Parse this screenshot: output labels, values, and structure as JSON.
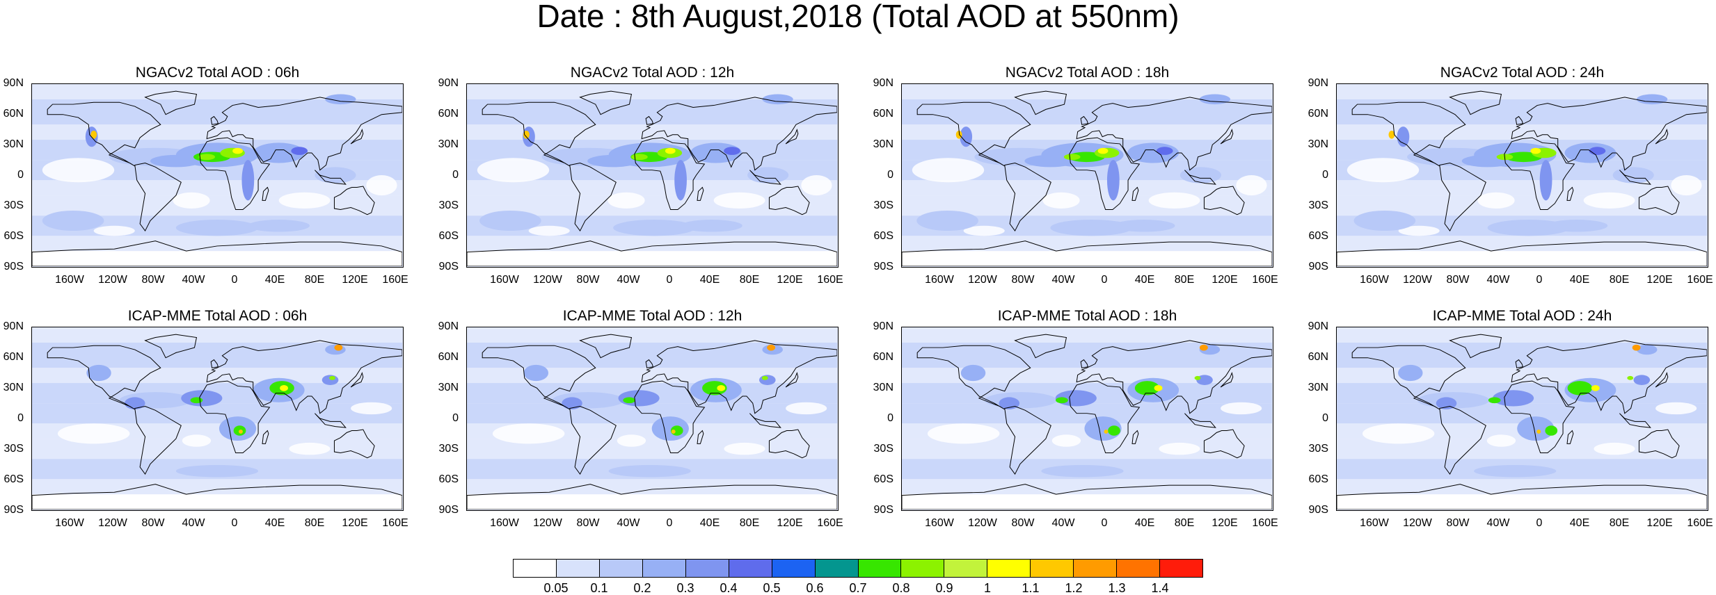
{
  "title": "Date : 8th August,2018 (Total AOD at 550nm)",
  "panels": [
    {
      "title": "NGACv2 Total AOD : 06h",
      "model": "NGACv2"
    },
    {
      "title": "NGACv2 Total AOD : 12h",
      "model": "NGACv2"
    },
    {
      "title": "NGACv2 Total AOD : 18h",
      "model": "NGACv2"
    },
    {
      "title": "NGACv2 Total AOD : 24h",
      "model": "NGACv2"
    },
    {
      "title": "ICAP-MME Total AOD : 06h",
      "model": "ICAP-MME"
    },
    {
      "title": "ICAP-MME Total AOD : 12h",
      "model": "ICAP-MME"
    },
    {
      "title": "ICAP-MME Total AOD : 18h",
      "model": "ICAP-MME"
    },
    {
      "title": "ICAP-MME Total AOD : 24h",
      "model": "ICAP-MME"
    }
  ],
  "lat_labels": [
    "90N",
    "60N",
    "30N",
    "0",
    "30S",
    "60S",
    "90S"
  ],
  "lon_labels": [
    "160W",
    "120W",
    "80W",
    "40W",
    "0",
    "40E",
    "80E",
    "120E",
    "160E"
  ],
  "colorbar": {
    "labels": [
      "0.05",
      "0.1",
      "0.2",
      "0.3",
      "0.4",
      "0.5",
      "0.6",
      "0.7",
      "0.8",
      "0.9",
      "1",
      "1.1",
      "1.2",
      "1.3",
      "1.4"
    ],
    "colors": [
      "#ffffff",
      "#d8e2fb",
      "#b8c9f8",
      "#97b0f5",
      "#7f95f0",
      "#5f6cec",
      "#1c63f2",
      "#04968f",
      "#37e600",
      "#8cf200",
      "#c2f33b",
      "#ffff00",
      "#ffc800",
      "#ff9b00",
      "#ff7300",
      "#ff1c0a"
    ]
  }
}
